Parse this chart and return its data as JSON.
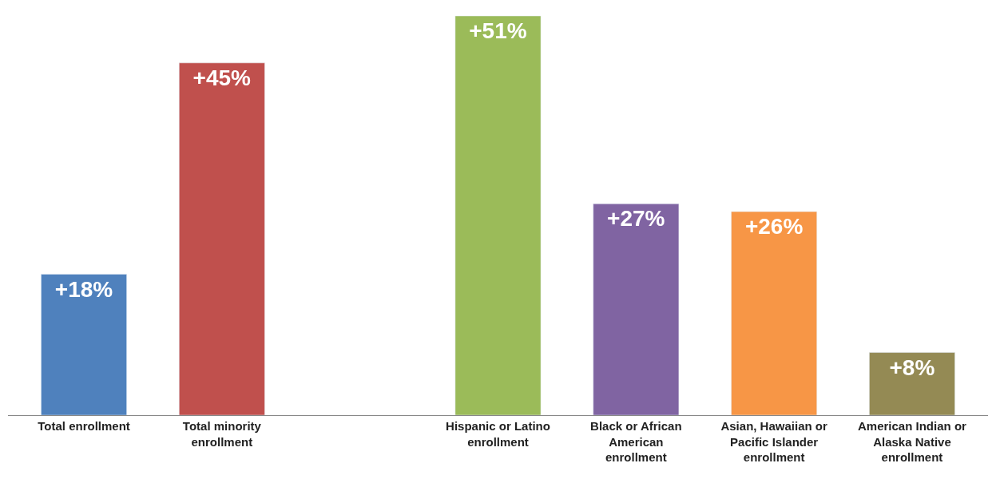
{
  "chart_data": {
    "type": "bar",
    "categories": [
      "Total enrollment",
      "Total minority enrollment",
      null,
      "Hispanic or Latino enrollment",
      "Black or African American enrollment",
      "Asian, Hawaiian or Pacific Islander enrollment",
      "American Indian or Alaska Native enrollment"
    ],
    "values": [
      18,
      45,
      null,
      51,
      27,
      26,
      8
    ],
    "value_labels": [
      "+18%",
      "+45%",
      null,
      "+51%",
      "+27%",
      "+26%",
      "+8%"
    ],
    "colors": [
      "#4f81bd",
      "#c0504d",
      "#ffffff",
      "#9bbb59",
      "#8064a2",
      "#f79646",
      "#948a54"
    ],
    "legend": false
  }
}
